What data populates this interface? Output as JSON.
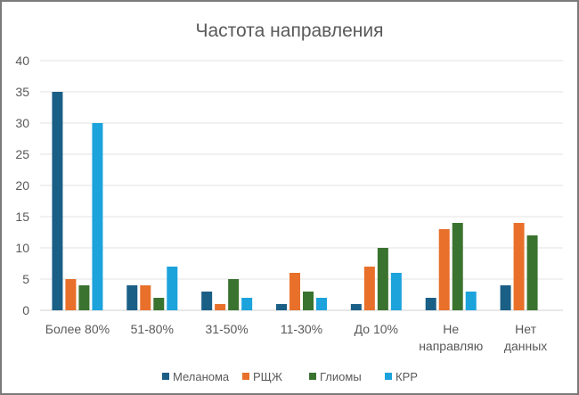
{
  "chart_data": {
    "type": "bar",
    "title": "Частота направления",
    "xlabel": "",
    "ylabel": "",
    "ylim": [
      0,
      40
    ],
    "yticks": [
      0,
      5,
      10,
      15,
      20,
      25,
      30,
      35,
      40
    ],
    "grid": true,
    "legend_position": "bottom",
    "categories": [
      [
        "Более 80%"
      ],
      [
        "51-80%"
      ],
      [
        "31-50%"
      ],
      [
        "11-30%"
      ],
      [
        "До 10%"
      ],
      [
        "Не",
        "направляю"
      ],
      [
        "Нет",
        "данных"
      ]
    ],
    "series": [
      {
        "name": "Меланома",
        "color": "#1a5f86",
        "values": [
          35,
          4,
          3,
          1,
          1,
          2,
          4
        ]
      },
      {
        "name": "РЩЖ",
        "color": "#e8702a",
        "values": [
          5,
          4,
          1,
          6,
          7,
          13,
          14
        ]
      },
      {
        "name": "Глиомы",
        "color": "#3a7330",
        "values": [
          4,
          2,
          5,
          3,
          10,
          14,
          12
        ]
      },
      {
        "name": "КРР",
        "color": "#1ca3dc",
        "values": [
          30,
          7,
          2,
          2,
          6,
          3,
          0
        ]
      }
    ]
  }
}
